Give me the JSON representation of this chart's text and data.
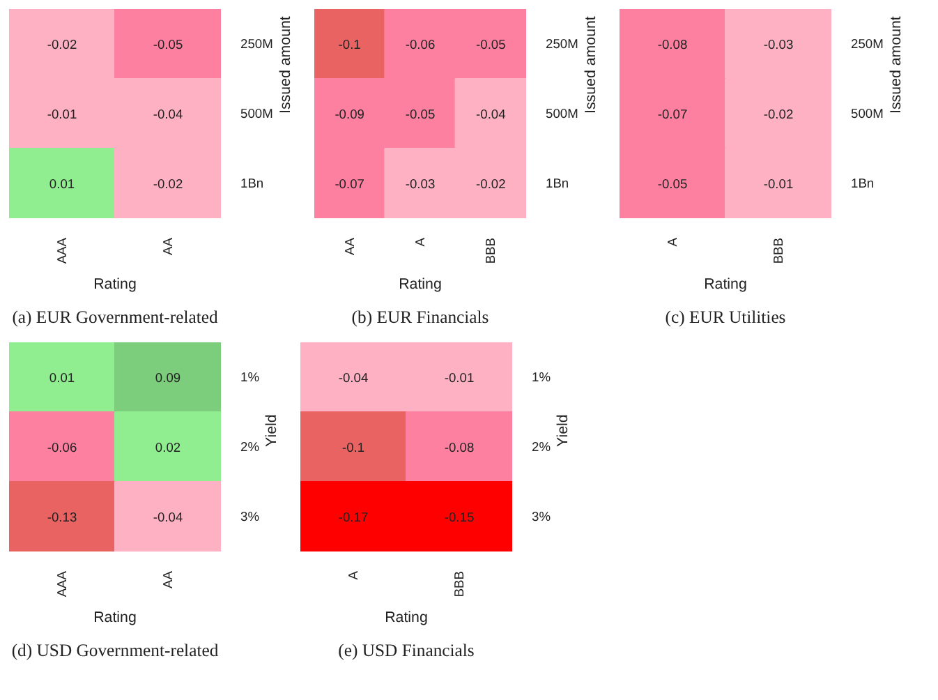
{
  "chart_data": [
    {
      "type": "heatmap",
      "title": "(a) EUR Government-related",
      "xlabel": "Rating",
      "ylabel": "Issued amount",
      "categories": [
        "AAA",
        "AA"
      ],
      "y_categories": [
        "250M",
        "500M",
        "1Bn"
      ],
      "cells": [
        [
          -0.02,
          -0.05
        ],
        [
          -0.01,
          -0.04
        ],
        [
          0.01,
          -0.02
        ]
      ],
      "colors": [
        [
          "#feb1c3",
          "#fe80a0"
        ],
        [
          "#feb1c3",
          "#feb1c3"
        ],
        [
          "#90ee90",
          "#feb1c3"
        ]
      ],
      "data_labels": true
    },
    {
      "type": "heatmap",
      "title": "(b) EUR Financials",
      "xlabel": "Rating",
      "ylabel": "Issued amount",
      "categories": [
        "AA",
        "A",
        "BBB"
      ],
      "y_categories": [
        "250M",
        "500M",
        "1Bn"
      ],
      "cells": [
        [
          -0.1,
          -0.06,
          -0.05
        ],
        [
          -0.09,
          -0.05,
          -0.04
        ],
        [
          -0.07,
          -0.03,
          -0.02
        ]
      ],
      "colors": [
        [
          "#ea6363",
          "#fe80a0",
          "#fe80a0"
        ],
        [
          "#fe80a0",
          "#fe80a0",
          "#feb1c3"
        ],
        [
          "#fe80a0",
          "#feb1c3",
          "#feb1c3"
        ]
      ],
      "data_labels": true
    },
    {
      "type": "heatmap",
      "title": "(c) EUR Utilities",
      "xlabel": "Rating",
      "ylabel": "Issued amount",
      "categories": [
        "A",
        "BBB"
      ],
      "y_categories": [
        "250M",
        "500M",
        "1Bn"
      ],
      "cells": [
        [
          -0.08,
          -0.03
        ],
        [
          -0.07,
          -0.02
        ],
        [
          -0.05,
          -0.01
        ]
      ],
      "colors": [
        [
          "#fe80a0",
          "#feb1c3"
        ],
        [
          "#fe80a0",
          "#feb1c3"
        ],
        [
          "#fe80a0",
          "#feb1c3"
        ]
      ],
      "data_labels": true
    },
    {
      "type": "heatmap",
      "title": "(d) USD Government-related",
      "xlabel": "Rating",
      "ylabel": "Yield",
      "categories": [
        "AAA",
        "AA"
      ],
      "y_categories": [
        "1%",
        "2%",
        "3%"
      ],
      "cells": [
        [
          0.01,
          0.09
        ],
        [
          -0.06,
          0.02
        ],
        [
          -0.13,
          -0.04
        ]
      ],
      "colors": [
        [
          "#90ee90",
          "#7ccd7c"
        ],
        [
          "#fe80a0",
          "#90ee90"
        ],
        [
          "#ea6363",
          "#feb1c3"
        ]
      ],
      "data_labels": true
    },
    {
      "type": "heatmap",
      "title": "(e) USD Financials",
      "xlabel": "Rating",
      "ylabel": "Yield",
      "categories": [
        "A",
        "BBB"
      ],
      "y_categories": [
        "1%",
        "2%",
        "3%"
      ],
      "cells": [
        [
          -0.04,
          -0.01
        ],
        [
          -0.1,
          -0.08
        ],
        [
          -0.17,
          -0.15
        ]
      ],
      "colors": [
        [
          "#feb1c3",
          "#feb1c3"
        ],
        [
          "#ea6363",
          "#fe80a0"
        ],
        [
          "#ff0000",
          "#ff0000"
        ]
      ],
      "data_labels": true
    }
  ]
}
